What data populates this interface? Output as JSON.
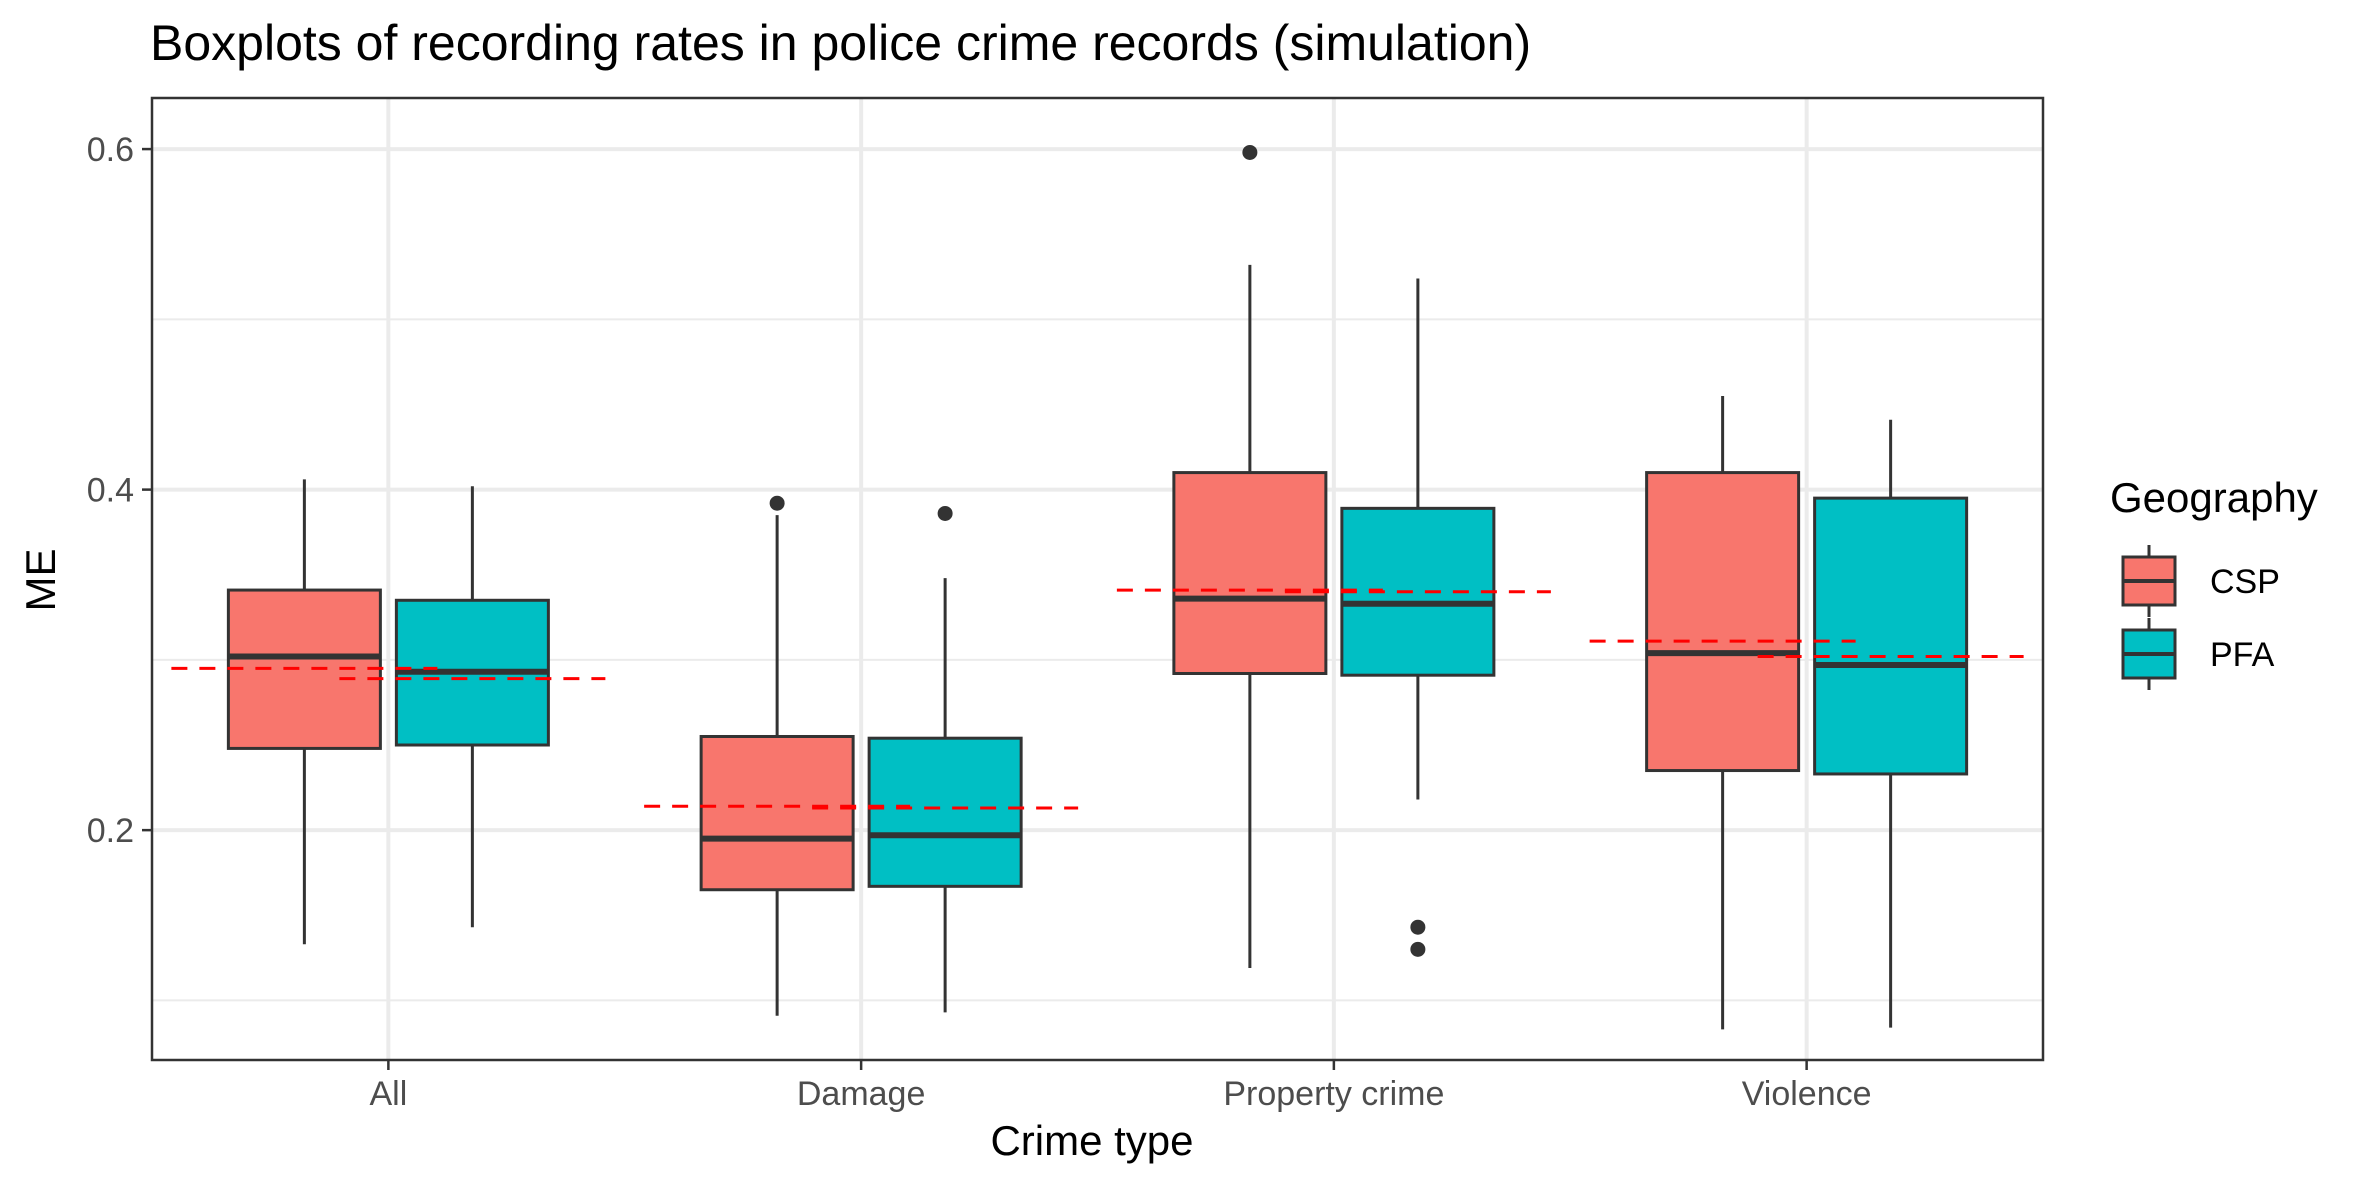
{
  "chart_data": {
    "type": "boxplot",
    "title": "Boxplots of recording rates in police crime records (simulation)",
    "xlabel": "Crime type",
    "ylabel": "ME",
    "categories": [
      "All",
      "Damage",
      "Property crime",
      "Violence"
    ],
    "ylim": [
      0.065,
      0.63
    ],
    "yticks": [
      0.2,
      0.4,
      0.6
    ],
    "ytick_labels": [
      "0.2",
      "0.4",
      "0.6"
    ],
    "grid": true,
    "legend": {
      "title": "Geography",
      "position": "right"
    },
    "series": [
      {
        "name": "CSP",
        "color": "#F8766D",
        "boxes": [
          {
            "category": "All",
            "whisker_low": 0.133,
            "q1": 0.248,
            "median": 0.302,
            "q3": 0.341,
            "whisker_high": 0.406,
            "outliers": []
          },
          {
            "category": "Damage",
            "whisker_low": 0.091,
            "q1": 0.165,
            "median": 0.195,
            "q3": 0.255,
            "whisker_high": 0.385,
            "outliers": [
              0.392
            ]
          },
          {
            "category": "Property crime",
            "whisker_low": 0.119,
            "q1": 0.292,
            "median": 0.336,
            "q3": 0.41,
            "whisker_high": 0.532,
            "outliers": [
              0.598
            ]
          },
          {
            "category": "Violence",
            "whisker_low": 0.083,
            "q1": 0.235,
            "median": 0.304,
            "q3": 0.41,
            "whisker_high": 0.455,
            "outliers": []
          }
        ]
      },
      {
        "name": "PFA",
        "color": "#00BFC4",
        "boxes": [
          {
            "category": "All",
            "whisker_low": 0.143,
            "q1": 0.25,
            "median": 0.293,
            "q3": 0.335,
            "whisker_high": 0.402,
            "outliers": []
          },
          {
            "category": "Damage",
            "whisker_low": 0.093,
            "q1": 0.167,
            "median": 0.197,
            "q3": 0.254,
            "whisker_high": 0.348,
            "outliers": [
              0.386
            ]
          },
          {
            "category": "Property crime",
            "whisker_low": 0.218,
            "q1": 0.291,
            "median": 0.333,
            "q3": 0.389,
            "whisker_high": 0.524,
            "outliers": [
              0.143,
              0.13
            ]
          },
          {
            "category": "Violence",
            "whisker_low": 0.084,
            "q1": 0.233,
            "median": 0.297,
            "q3": 0.395,
            "whisker_high": 0.441,
            "outliers": []
          }
        ]
      }
    ],
    "reference_lines": [
      {
        "category": "All",
        "series": "CSP",
        "value": 0.295
      },
      {
        "category": "All",
        "series": "PFA",
        "value": 0.289
      },
      {
        "category": "Damage",
        "series": "CSP",
        "value": 0.214
      },
      {
        "category": "Damage",
        "series": "PFA",
        "value": 0.213
      },
      {
        "category": "Property crime",
        "series": "CSP",
        "value": 0.341
      },
      {
        "category": "Property crime",
        "series": "PFA",
        "value": 0.34
      },
      {
        "category": "Violence",
        "series": "CSP",
        "value": 0.311
      },
      {
        "category": "Violence",
        "series": "PFA",
        "value": 0.302
      }
    ],
    "reference_line_style": {
      "color": "#FF0000",
      "dash": "dashed"
    }
  }
}
